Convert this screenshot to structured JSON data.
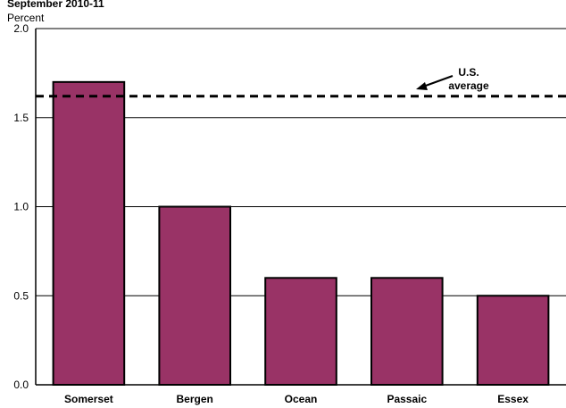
{
  "chart_data": {
    "type": "bar",
    "subtitle": "September 2010-11",
    "ylabel": "Percent",
    "categories": [
      "Somerset",
      "Bergen",
      "Ocean",
      "Passaic",
      "Essex"
    ],
    "values": [
      1.7,
      1.0,
      0.6,
      0.6,
      0.5
    ],
    "ylim": [
      0.0,
      2.0
    ],
    "yticks": [
      "0.0",
      "0.5",
      "1.0",
      "1.5",
      "2.0"
    ],
    "ytick_values": [
      0.0,
      0.5,
      1.0,
      1.5,
      2.0
    ],
    "grid": true,
    "reference_line": {
      "label_line1": "U.S.",
      "label_line2": "average",
      "value": 1.62
    },
    "colors": {
      "bar": "#993366",
      "bar_stroke": "#000000",
      "grid": "#000000",
      "reference": "#000000"
    }
  }
}
